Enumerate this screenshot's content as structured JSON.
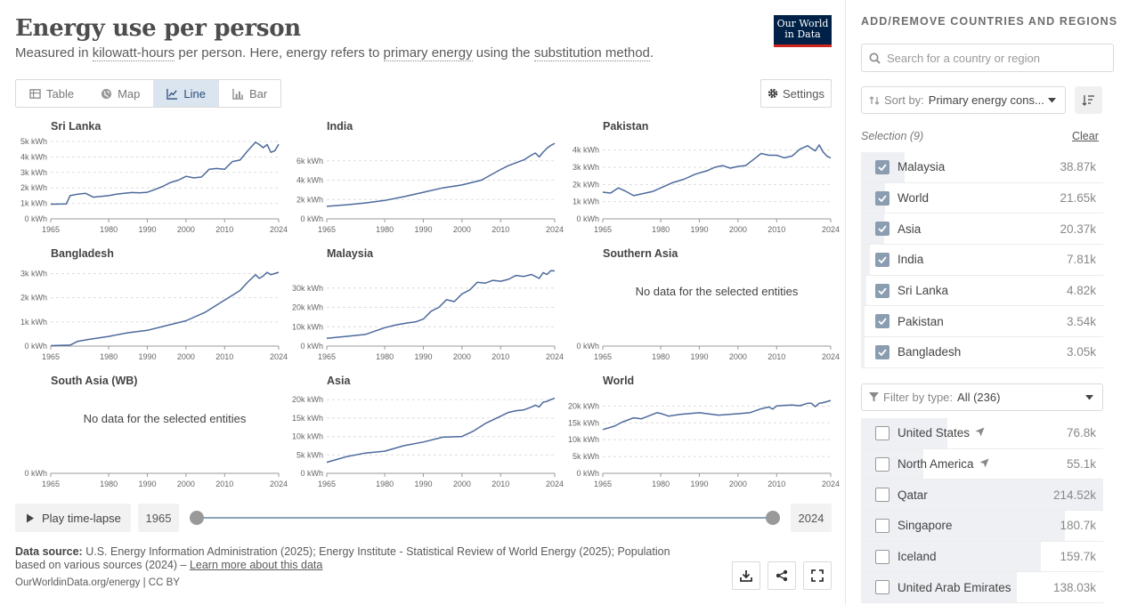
{
  "header": {
    "title": "Energy use per person",
    "subtitle_parts": [
      "Measured in ",
      "kilowatt-hours",
      " per person. Here, energy refers to ",
      "primary energy",
      " using the ",
      "substitution method",
      "."
    ],
    "logo_line1": "Our World",
    "logo_line2": "in Data"
  },
  "tabs": [
    {
      "label": "Table",
      "icon": "table-icon"
    },
    {
      "label": "Map",
      "icon": "globe-icon"
    },
    {
      "label": "Line",
      "icon": "line-chart-icon",
      "active": true
    },
    {
      "label": "Bar",
      "icon": "bar-chart-icon"
    }
  ],
  "settings_label": "Settings",
  "chart_data": [
    {
      "type": "line",
      "title": "Sri Lanka",
      "x_ticks": [
        1965,
        1980,
        1990,
        2000,
        2010,
        2024
      ],
      "xlim": [
        1965,
        2024
      ],
      "y_ticks": [
        0,
        1000,
        2000,
        3000,
        4000,
        5000
      ],
      "y_tick_labels": [
        "0 kWh",
        "1k kWh",
        "2k kWh",
        "3k kWh",
        "4k kWh",
        "5k kWh"
      ],
      "ylim": [
        0,
        5000
      ],
      "x": [
        1965,
        1969,
        1970,
        1972,
        1974,
        1976,
        1978,
        1980,
        1982,
        1984,
        1986,
        1988,
        1990,
        1992,
        1994,
        1996,
        1998,
        2000,
        2002,
        2004,
        2006,
        2008,
        2010,
        2012,
        2014,
        2016,
        2018,
        2019,
        2020,
        2021,
        2022,
        2023,
        2024
      ],
      "values": [
        950,
        960,
        1500,
        1600,
        1650,
        1400,
        1450,
        1500,
        1600,
        1650,
        1700,
        1680,
        1720,
        1900,
        2100,
        2350,
        2500,
        2750,
        2650,
        2700,
        3200,
        3250,
        3200,
        3700,
        3800,
        4400,
        4950,
        4800,
        4600,
        4800,
        4300,
        4400,
        4820
      ]
    },
    {
      "type": "line",
      "title": "India",
      "x_ticks": [
        1965,
        1980,
        1990,
        2000,
        2010,
        2024
      ],
      "xlim": [
        1965,
        2024
      ],
      "y_ticks": [
        0,
        2000,
        4000,
        6000
      ],
      "y_tick_labels": [
        "0 kWh",
        "2k kWh",
        "4k kWh",
        "6k kWh"
      ],
      "ylim": [
        0,
        8000
      ],
      "x": [
        1965,
        1970,
        1975,
        1980,
        1985,
        1990,
        1995,
        2000,
        2005,
        2010,
        2012,
        2014,
        2016,
        2018,
        2019,
        2020,
        2021,
        2022,
        2023,
        2024
      ],
      "values": [
        1300,
        1450,
        1650,
        1900,
        2300,
        2750,
        3200,
        3500,
        4000,
        5100,
        5500,
        5800,
        6100,
        6600,
        6800,
        6400,
        6900,
        7300,
        7600,
        7810
      ]
    },
    {
      "type": "line",
      "title": "Pakistan",
      "x_ticks": [
        1965,
        1980,
        1990,
        2000,
        2010,
        2024
      ],
      "xlim": [
        1965,
        2024
      ],
      "y_ticks": [
        0,
        1000,
        2000,
        3000,
        4000
      ],
      "y_tick_labels": [
        "0 kWh",
        "1k kWh",
        "2k kWh",
        "3k kWh",
        "4k kWh"
      ],
      "ylim": [
        0,
        4500
      ],
      "x": [
        1965,
        1967,
        1969,
        1971,
        1973,
        1975,
        1978,
        1980,
        1983,
        1986,
        1989,
        1992,
        1994,
        1996,
        1998,
        2000,
        2002,
        2004,
        2006,
        2008,
        2010,
        2012,
        2014,
        2016,
        2018,
        2019,
        2020,
        2021,
        2022,
        2023,
        2024
      ],
      "values": [
        1550,
        1500,
        1800,
        1600,
        1350,
        1450,
        1600,
        1800,
        2100,
        2300,
        2600,
        2800,
        3000,
        3100,
        2950,
        3050,
        3100,
        3450,
        3800,
        3700,
        3700,
        3550,
        3650,
        4050,
        4250,
        4100,
        3950,
        4300,
        3900,
        3650,
        3540
      ]
    },
    {
      "type": "line",
      "title": "Bangladesh",
      "x_ticks": [
        1965,
        1980,
        1990,
        2000,
        2010,
        2024
      ],
      "xlim": [
        1965,
        2024
      ],
      "y_ticks": [
        0,
        1000,
        2000,
        3000
      ],
      "y_tick_labels": [
        "0 kWh",
        "1k kWh",
        "2k kWh",
        "3k kWh"
      ],
      "ylim": [
        0,
        3200
      ],
      "x": [
        1965,
        1970,
        1972,
        1975,
        1980,
        1985,
        1990,
        1995,
        2000,
        2005,
        2010,
        2014,
        2016,
        2018,
        2019,
        2020,
        2021,
        2022,
        2023,
        2024
      ],
      "values": [
        20,
        40,
        200,
        280,
        400,
        550,
        650,
        850,
        1050,
        1400,
        1900,
        2300,
        2650,
        2950,
        2800,
        2900,
        3050,
        2950,
        3000,
        3050
      ]
    },
    {
      "type": "line",
      "title": "Malaysia",
      "x_ticks": [
        1965,
        1980,
        1990,
        2000,
        2010,
        2024
      ],
      "xlim": [
        1965,
        2024
      ],
      "y_ticks": [
        0,
        10000,
        20000,
        30000
      ],
      "y_tick_labels": [
        "0 kWh",
        "10k kWh",
        "20k kWh",
        "30k kWh"
      ],
      "ylim": [
        0,
        40000
      ],
      "x": [
        1965,
        1970,
        1975,
        1980,
        1983,
        1986,
        1988,
        1990,
        1992,
        1994,
        1996,
        1998,
        2000,
        2002,
        2004,
        2006,
        2008,
        2010,
        2012,
        2014,
        2016,
        2018,
        2020,
        2021,
        2022,
        2023,
        2024
      ],
      "values": [
        4000,
        5000,
        6000,
        9500,
        11000,
        12000,
        12500,
        14000,
        18000,
        20000,
        24000,
        23000,
        27000,
        29000,
        33000,
        32500,
        34000,
        33500,
        34500,
        36500,
        36000,
        37000,
        35000,
        38000,
        37000,
        39000,
        38870
      ]
    },
    {
      "type": "line",
      "title": "Southern Asia",
      "no_data_text": "No data for the selected entities",
      "x_ticks": [
        1965,
        1980,
        1990,
        2000,
        2010,
        2024
      ],
      "xlim": [
        1965,
        2024
      ],
      "y_ticks": [
        0
      ],
      "y_tick_labels": [
        "0 kWh"
      ],
      "ylim": [
        0,
        1
      ],
      "x": [],
      "values": []
    },
    {
      "type": "line",
      "title": "South Asia (WB)",
      "no_data_text": "No data for the selected entities",
      "x_ticks": [
        1965,
        1980,
        1990,
        2000,
        2010,
        2024
      ],
      "xlim": [
        1965,
        2024
      ],
      "y_ticks": [
        0
      ],
      "y_tick_labels": [
        "0 kWh"
      ],
      "ylim": [
        0,
        1
      ],
      "x": [],
      "values": []
    },
    {
      "type": "line",
      "title": "Asia",
      "x_ticks": [
        1965,
        1980,
        1990,
        2000,
        2010,
        2024
      ],
      "xlim": [
        1965,
        2024
      ],
      "y_ticks": [
        0,
        5000,
        10000,
        15000,
        20000
      ],
      "y_tick_labels": [
        "0 kWh",
        "5k kWh",
        "10k kWh",
        "15k kWh",
        "20k kWh"
      ],
      "ylim": [
        0,
        21000
      ],
      "x": [
        1965,
        1970,
        1975,
        1980,
        1985,
        1990,
        1995,
        2000,
        2003,
        2006,
        2008,
        2010,
        2012,
        2014,
        2016,
        2018,
        2019,
        2020,
        2021,
        2022,
        2023,
        2024
      ],
      "values": [
        3000,
        4500,
        5500,
        6000,
        7500,
        8500,
        9800,
        10000,
        11500,
        13500,
        14500,
        15500,
        16500,
        17000,
        17200,
        18000,
        18500,
        18000,
        19300,
        19500,
        20000,
        20370
      ]
    },
    {
      "type": "line",
      "title": "World",
      "x_ticks": [
        1965,
        1980,
        1990,
        2000,
        2010,
        2024
      ],
      "xlim": [
        1965,
        2024
      ],
      "y_ticks": [
        0,
        5000,
        10000,
        15000,
        20000
      ],
      "y_tick_labels": [
        "0 kWh",
        "5k kWh",
        "10k kWh",
        "15k kWh",
        "20k kWh"
      ],
      "ylim": [
        0,
        23000
      ],
      "x": [
        1965,
        1968,
        1970,
        1973,
        1975,
        1979,
        1980,
        1982,
        1985,
        1990,
        1995,
        2000,
        2003,
        2006,
        2008,
        2009,
        2010,
        2012,
        2014,
        2016,
        2018,
        2019,
        2020,
        2021,
        2022,
        2023,
        2024
      ],
      "values": [
        13000,
        14000,
        15200,
        16500,
        16200,
        18000,
        17800,
        17000,
        17500,
        18000,
        17300,
        17700,
        18000,
        19200,
        19700,
        19100,
        20000,
        20200,
        20300,
        20100,
        20800,
        20800,
        19800,
        20800,
        21000,
        21300,
        21650
      ]
    }
  ],
  "timeline": {
    "play_label": "Play time-lapse",
    "start_year": "1965",
    "end_year": "2024"
  },
  "footer": {
    "source_label": "Data source:",
    "source_text": " U.S. Energy Information Administration (2025); Energy Institute - Statistical Review of World Energy (2025); Population based on various sources (2024) – ",
    "learn_more": "Learn more about this data",
    "url": "OurWorldinData.org/energy | CC BY"
  },
  "sidebar": {
    "title": "ADD/REMOVE COUNTRIES AND REGIONS",
    "search_placeholder": "Search for a country or region",
    "sort_label": "Sort by:",
    "sort_value": "Primary energy cons...",
    "selection_label": "Selection (9)",
    "clear_label": "Clear",
    "selected": [
      {
        "name": "Malaysia",
        "value": "38.87k",
        "fraction": 0.18
      },
      {
        "name": "World",
        "value": "21.65k",
        "fraction": 0.1
      },
      {
        "name": "Asia",
        "value": "20.37k",
        "fraction": 0.095
      },
      {
        "name": "India",
        "value": "7.81k",
        "fraction": 0.036
      },
      {
        "name": "Sri Lanka",
        "value": "4.82k",
        "fraction": 0.022
      },
      {
        "name": "Pakistan",
        "value": "3.54k",
        "fraction": 0.016
      },
      {
        "name": "Bangladesh",
        "value": "3.05k",
        "fraction": 0.014
      }
    ],
    "filter_label": "Filter by type:",
    "filter_value": "All (236)",
    "unselected": [
      {
        "name": "United States",
        "value": "76.8k",
        "fraction": 0.358,
        "locate": true
      },
      {
        "name": "North America",
        "value": "55.1k",
        "fraction": 0.257,
        "locate": true
      },
      {
        "name": "Qatar",
        "value": "214.52k",
        "fraction": 1.0
      },
      {
        "name": "Singapore",
        "value": "180.7k",
        "fraction": 0.842
      },
      {
        "name": "Iceland",
        "value": "159.7k",
        "fraction": 0.744
      },
      {
        "name": "United Arab Emirates",
        "value": "138.03k",
        "fraction": 0.643
      }
    ]
  },
  "colors": {
    "line": "#4c6a9c",
    "grid": "#dddddd",
    "accent": "#002147"
  }
}
